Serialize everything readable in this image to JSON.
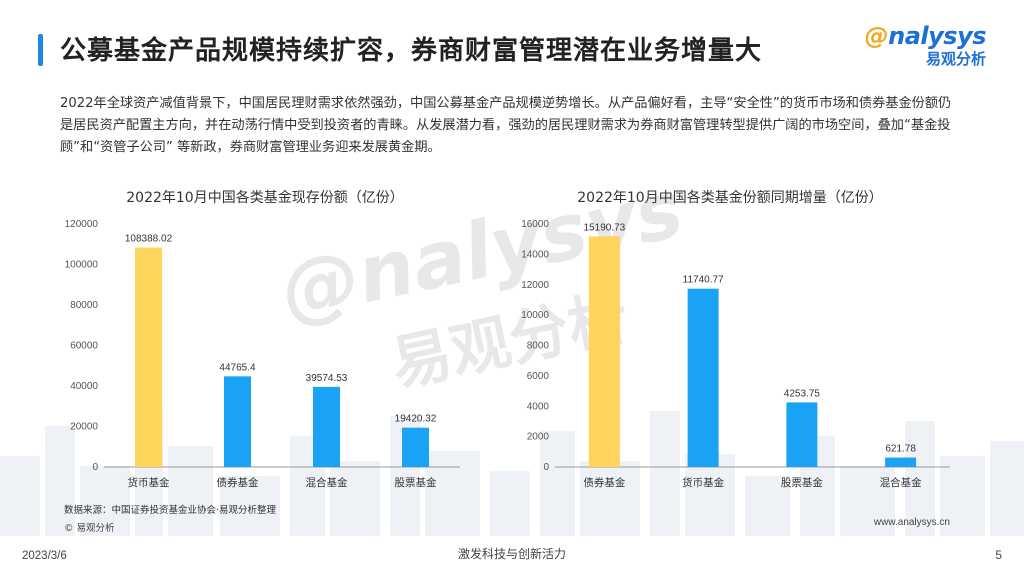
{
  "header": {
    "title": "公募基金产品规模持续扩容，券商财富管理潜在业务增量大",
    "logo_en": "nalysys",
    "logo_cn": "易观分析"
  },
  "intro": "2022年全球资产减值背景下，中国居民理财需求依然强劲，中国公募基金产品规模逆势增长。从产品偏好看，主导“安全性”的货币市场和债券基金份额仍是居民资产配置主方向，并在动荡行情中受到投资者的青睐。从发展潜力看，强劲的居民理财需求为券商财富管理转型提供广阔的市场空间，叠加“基金投顾”和“资管子公司” 等新政，券商财富管理业务迎来发展黄金期。",
  "watermark": {
    "en": "nalysys",
    "cn": "易观分析"
  },
  "colors": {
    "highlight": "#FFD45C",
    "primary": "#1AA3F5",
    "accent": "#1e88e5"
  },
  "chart_data": [
    {
      "type": "bar",
      "title": "2022年10月中国各类基金现存份额（亿份）",
      "categories": [
        "货币基金",
        "债券基金",
        "混合基金",
        "股票基金"
      ],
      "values": [
        108388.02,
        44765.4,
        39574.53,
        19420.32
      ],
      "value_labels": [
        "108388.02",
        "44765.4",
        "39574.53",
        "19420.32"
      ],
      "bar_colors": [
        "#FFD45C",
        "#1AA3F5",
        "#1AA3F5",
        "#1AA3F5"
      ],
      "yticks": [
        0,
        20000,
        40000,
        60000,
        80000,
        100000,
        120000
      ],
      "ylim": [
        0,
        120000
      ],
      "xlabel": "",
      "ylabel": "",
      "grid": false
    },
    {
      "type": "bar",
      "title": "2022年10月中国各类基金份额同期增量（亿份）",
      "categories": [
        "债券基金",
        "货币基金",
        "股票基金",
        "混合基金"
      ],
      "values": [
        15190.73,
        11740.77,
        4253.75,
        621.78
      ],
      "value_labels": [
        "15190.73",
        "11740.77",
        "4253.75",
        "621.78"
      ],
      "bar_colors": [
        "#FFD45C",
        "#1AA3F5",
        "#1AA3F5",
        "#1AA3F5"
      ],
      "yticks": [
        0,
        2000,
        4000,
        6000,
        8000,
        10000,
        12000,
        14000,
        16000
      ],
      "ylim": [
        0,
        16000
      ],
      "xlabel": "",
      "ylabel": "",
      "grid": false
    }
  ],
  "source": "数据来源：中国证券投资基金业协会·易观分析整理",
  "copyright": "© 易观分析",
  "website": "www.analysys.cn",
  "footer": {
    "date": "2023/3/6",
    "slogan": "激发科技与创新活力",
    "page": "5"
  }
}
